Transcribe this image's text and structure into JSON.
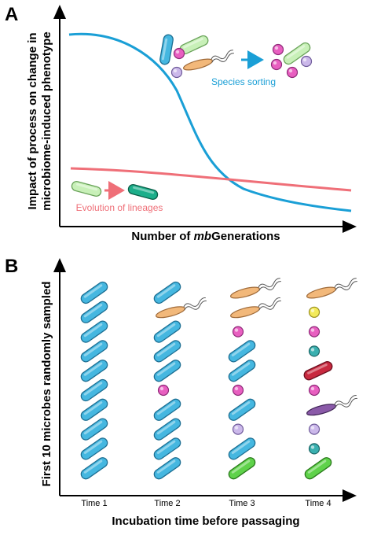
{
  "panel_a": {
    "letter": "A",
    "y_label": [
      "Impact of process on change in",
      "microbiome-induced phenotype"
    ],
    "x_label": [
      "Number of ",
      "mb",
      "Generations"
    ],
    "curve_labels": {
      "species_sorting": "Species sorting",
      "evolution": "Evolution of lineages"
    }
  },
  "panel_b": {
    "letter": "B",
    "y_label": "First 10 microbes randomly sampled",
    "x_label": "Incubation time before passaging",
    "columns": [
      "Time 1",
      "Time 2",
      "Time 3",
      "Time 4"
    ]
  }
}
